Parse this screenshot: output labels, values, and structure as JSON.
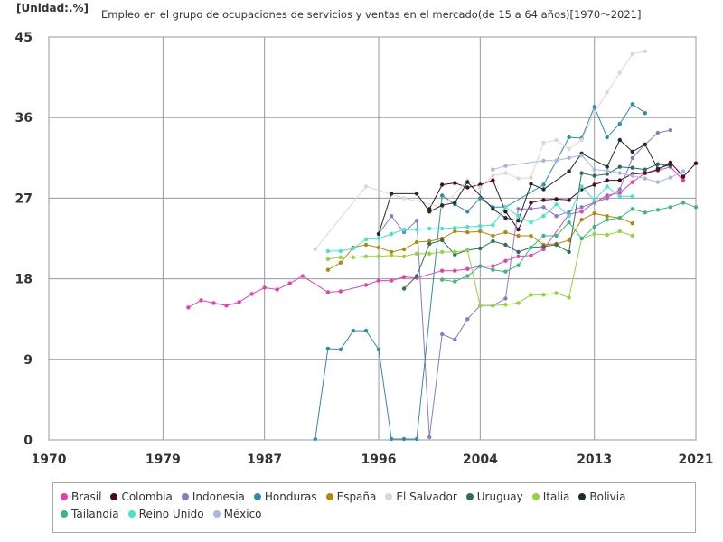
{
  "chart_data": {
    "type": "line",
    "title": "Empleo en el grupo de ocupaciones de servicios y ventas en el mercado(de 15 a 64 años)[1970〜2021]",
    "unit_label": "[Unidad:.%]",
    "xlabel": "",
    "ylabel": "",
    "xlim": [
      1970,
      2021
    ],
    "ylim": [
      0,
      45
    ],
    "x_ticks": [
      "1970",
      "1979",
      "1987",
      "1996",
      "2004",
      "2013",
      "2021"
    ],
    "y_ticks": [
      "0",
      "9",
      "18",
      "27",
      "36",
      "45"
    ],
    "grid": true,
    "legend_position": "bottom",
    "series": [
      {
        "name": "Brasil",
        "color": "#e83fb0",
        "points": [
          [
            1981,
            14.8
          ],
          [
            1982,
            15.6
          ],
          [
            1983,
            15.3
          ],
          [
            1984,
            15
          ],
          [
            1985,
            15.4
          ],
          [
            1986,
            16.3
          ],
          [
            1987,
            17
          ],
          [
            1988,
            16.8
          ],
          [
            1989,
            17.5
          ],
          [
            1990,
            18.3
          ],
          [
            1992,
            16.5
          ],
          [
            1993,
            16.6
          ],
          [
            1995,
            17.3
          ],
          [
            1996,
            17.8
          ],
          [
            1997,
            17.8
          ],
          [
            1998,
            18.2
          ],
          [
            1999,
            18.1
          ],
          [
            2001,
            18.9
          ],
          [
            2002,
            18.9
          ],
          [
            2003,
            19.1
          ],
          [
            2004,
            19.4
          ],
          [
            2005,
            19.4
          ],
          [
            2006,
            20
          ],
          [
            2007,
            20.5
          ],
          [
            2008,
            20.6
          ],
          [
            2009,
            21.3
          ],
          [
            2011,
            25.2
          ],
          [
            2012,
            25.5
          ],
          [
            2013,
            26.5
          ],
          [
            2014,
            27.3
          ],
          [
            2015,
            27.6
          ],
          [
            2016,
            28.8
          ],
          [
            2017,
            29.8
          ],
          [
            2018,
            30.1
          ],
          [
            2019,
            30.5
          ],
          [
            2020,
            29
          ]
        ]
      },
      {
        "name": "Colombia",
        "color": "#4a0a23",
        "points": [
          [
            2000,
            25.8
          ],
          [
            2001,
            28.5
          ],
          [
            2002,
            28.7
          ],
          [
            2003,
            28.2
          ],
          [
            2004,
            28.5
          ],
          [
            2005,
            29
          ],
          [
            2006,
            25.5
          ],
          [
            2007,
            23.5
          ],
          [
            2008,
            26.5
          ],
          [
            2009,
            26.8
          ],
          [
            2010,
            26.9
          ],
          [
            2011,
            26.8
          ],
          [
            2012,
            28
          ],
          [
            2013,
            28.5
          ],
          [
            2014,
            29
          ],
          [
            2015,
            29
          ],
          [
            2016,
            29.7
          ],
          [
            2017,
            29.8
          ],
          [
            2018,
            30.2
          ],
          [
            2019,
            31
          ],
          [
            2020,
            29.4
          ],
          [
            2021,
            30.9
          ]
        ]
      },
      {
        "name": "Indonesia",
        "color": "#8a7acc",
        "points": [
          [
            1996,
            23
          ],
          [
            1997,
            25
          ],
          [
            1998,
            23.2
          ],
          [
            1999,
            24.5
          ],
          [
            2000,
            0.3
          ],
          [
            2001,
            11.8
          ],
          [
            2002,
            11.2
          ],
          [
            2003,
            13.5
          ],
          [
            2004,
            15
          ],
          [
            2005,
            15
          ],
          [
            2006,
            15.8
          ],
          [
            2007,
            25.8
          ],
          [
            2008,
            25.8
          ],
          [
            2009,
            26
          ],
          [
            2010,
            25
          ],
          [
            2011,
            25.5
          ],
          [
            2012,
            26
          ],
          [
            2013,
            26.5
          ],
          [
            2014,
            27
          ],
          [
            2015,
            28
          ],
          [
            2016,
            31.5
          ],
          [
            2017,
            33
          ],
          [
            2018,
            34.3
          ],
          [
            2019,
            34.6
          ]
        ]
      },
      {
        "name": "Honduras",
        "color": "#2c8ea8",
        "points": [
          [
            1991,
            0.1
          ],
          [
            1992,
            10.2
          ],
          [
            1993,
            10.1
          ],
          [
            1994,
            12.2
          ],
          [
            1995,
            12.2
          ],
          [
            1996,
            10.1
          ],
          [
            1997,
            0.1
          ],
          [
            1998,
            0.1
          ],
          [
            1999,
            0.1
          ],
          [
            2001,
            27.3
          ],
          [
            2002,
            26.3
          ],
          [
            2003,
            25.5
          ],
          [
            2004,
            27
          ],
          [
            2005,
            26
          ],
          [
            2006,
            26
          ],
          [
            2009,
            28.5
          ],
          [
            2011,
            33.8
          ],
          [
            2012,
            33.7
          ],
          [
            2013,
            37.2
          ],
          [
            2014,
            33.8
          ],
          [
            2015,
            35.3
          ],
          [
            2016,
            37.5
          ],
          [
            2017,
            36.5
          ]
        ]
      },
      {
        "name": "España",
        "color": "#b8860b",
        "points": [
          [
            1992,
            19
          ],
          [
            1993,
            19.8
          ],
          [
            1994,
            21.5
          ],
          [
            1995,
            21.8
          ],
          [
            1996,
            21.5
          ],
          [
            1997,
            21
          ],
          [
            1998,
            21.3
          ],
          [
            1999,
            22.1
          ],
          [
            2000,
            22.2
          ],
          [
            2001,
            22.5
          ],
          [
            2002,
            23.3
          ],
          [
            2003,
            23.2
          ],
          [
            2004,
            23.3
          ],
          [
            2005,
            22.8
          ],
          [
            2006,
            23.2
          ],
          [
            2007,
            22.8
          ],
          [
            2008,
            22.8
          ],
          [
            2009,
            21.8
          ],
          [
            2010,
            21.9
          ],
          [
            2011,
            22.3
          ],
          [
            2012,
            24.6
          ],
          [
            2013,
            25.3
          ],
          [
            2014,
            25
          ],
          [
            2015,
            24.8
          ],
          [
            2016,
            24.2
          ]
        ]
      },
      {
        "name": "El Salvador",
        "color": "#e0d4d8",
        "points": [
          [
            1991,
            21.3
          ],
          [
            1995,
            28.3
          ],
          [
            1998,
            27
          ],
          [
            2001,
            26
          ],
          [
            2003,
            29
          ],
          [
            2004,
            28.2
          ],
          [
            2005,
            29.5
          ],
          [
            2006,
            29.8
          ],
          [
            2007,
            29.2
          ],
          [
            2008,
            29.3
          ],
          [
            2009,
            33.2
          ],
          [
            2010,
            33.5
          ],
          [
            2011,
            32.5
          ],
          [
            2012,
            33.5
          ],
          [
            2013,
            36.5
          ],
          [
            2014,
            38.8
          ],
          [
            2015,
            41
          ],
          [
            2016,
            43.1
          ],
          [
            2017,
            43.4
          ]
        ]
      },
      {
        "name": "Uruguay",
        "color": "#2d6e5a",
        "points": [
          [
            1998,
            16.9
          ],
          [
            1999,
            18.3
          ],
          [
            2000,
            21.9
          ],
          [
            2001,
            22.3
          ],
          [
            2002,
            20.7
          ],
          [
            2003,
            21.2
          ],
          [
            2004,
            21.4
          ],
          [
            2005,
            22.2
          ],
          [
            2006,
            21.8
          ],
          [
            2007,
            21
          ],
          [
            2008,
            21.5
          ],
          [
            2009,
            21.6
          ],
          [
            2010,
            21.8
          ],
          [
            2011,
            21
          ],
          [
            2012,
            29.8
          ],
          [
            2013,
            29.5
          ],
          [
            2014,
            29.7
          ],
          [
            2015,
            30.5
          ],
          [
            2016,
            30.4
          ],
          [
            2017,
            30.2
          ],
          [
            2018,
            30.8
          ],
          [
            2019,
            30.6
          ]
        ]
      },
      {
        "name": "Italia",
        "color": "#8fd63a",
        "points": [
          [
            1992,
            20.2
          ],
          [
            1993,
            20.4
          ],
          [
            1994,
            20.4
          ],
          [
            1995,
            20.5
          ],
          [
            1996,
            20.5
          ],
          [
            1997,
            20.6
          ],
          [
            1998,
            20.5
          ],
          [
            1999,
            20.8
          ],
          [
            2000,
            20.8
          ],
          [
            2001,
            21
          ],
          [
            2002,
            21
          ],
          [
            2003,
            21.2
          ],
          [
            2004,
            15
          ],
          [
            2005,
            15
          ],
          [
            2006,
            15.1
          ],
          [
            2007,
            15.3
          ],
          [
            2008,
            16.2
          ],
          [
            2009,
            16.2
          ],
          [
            2010,
            16.4
          ],
          [
            2011,
            15.9
          ],
          [
            2012,
            22.5
          ],
          [
            2013,
            23
          ],
          [
            2014,
            22.9
          ],
          [
            2015,
            23.3
          ],
          [
            2016,
            22.8
          ]
        ]
      },
      {
        "name": "Bolivia",
        "color": "#1e2e2a",
        "points": [
          [
            1996,
            23
          ],
          [
            1997,
            27.5
          ],
          [
            1999,
            27.5
          ],
          [
            2000,
            25.5
          ],
          [
            2001,
            26.2
          ],
          [
            2002,
            26.5
          ],
          [
            2003,
            28.8
          ],
          [
            2005,
            25.8
          ],
          [
            2006,
            24.8
          ],
          [
            2007,
            24.5
          ],
          [
            2008,
            28.6
          ],
          [
            2009,
            28
          ],
          [
            2011,
            30
          ],
          [
            2012,
            32
          ],
          [
            2014,
            30.5
          ],
          [
            2015,
            33.5
          ],
          [
            2016,
            32.2
          ],
          [
            2017,
            33
          ],
          [
            2018,
            30.3
          ],
          [
            2019,
            30.8
          ]
        ]
      },
      {
        "name": "Tailandia",
        "color": "#3cb880",
        "points": [
          [
            2001,
            17.9
          ],
          [
            2002,
            17.7
          ],
          [
            2003,
            18.3
          ],
          [
            2004,
            19.4
          ],
          [
            2005,
            19
          ],
          [
            2006,
            18.8
          ],
          [
            2007,
            19.5
          ],
          [
            2008,
            21.5
          ],
          [
            2009,
            22.8
          ],
          [
            2010,
            22.8
          ],
          [
            2011,
            24.3
          ],
          [
            2012,
            22.5
          ],
          [
            2013,
            23.8
          ],
          [
            2014,
            24.6
          ],
          [
            2015,
            24.8
          ],
          [
            2016,
            25.8
          ],
          [
            2017,
            25.4
          ],
          [
            2018,
            25.7
          ],
          [
            2019,
            26
          ],
          [
            2020,
            26.5
          ],
          [
            2021,
            26
          ]
        ]
      },
      {
        "name": "Reino Unido",
        "color": "#40e8c8",
        "points": [
          [
            1992,
            21.1
          ],
          [
            1993,
            21.1
          ],
          [
            1994,
            21.4
          ],
          [
            1995,
            22.4
          ],
          [
            1996,
            22.5
          ],
          [
            1997,
            23
          ],
          [
            1998,
            23.5
          ],
          [
            1999,
            23.5
          ],
          [
            2000,
            23.6
          ],
          [
            2001,
            23.6
          ],
          [
            2002,
            23.7
          ],
          [
            2003,
            23.8
          ],
          [
            2004,
            23.9
          ],
          [
            2005,
            24
          ],
          [
            2006,
            26
          ],
          [
            2007,
            25
          ],
          [
            2008,
            24.3
          ],
          [
            2009,
            25
          ],
          [
            2010,
            26.3
          ],
          [
            2011,
            25
          ],
          [
            2012,
            28.3
          ],
          [
            2013,
            26.8
          ],
          [
            2014,
            28.3
          ],
          [
            2015,
            27.2
          ],
          [
            2016,
            27.2
          ]
        ]
      },
      {
        "name": "México",
        "color": "#a6b8e0",
        "points": [
          [
            2005,
            30.2
          ],
          [
            2006,
            30.6
          ],
          [
            2009,
            31.2
          ],
          [
            2010,
            31.2
          ],
          [
            2011,
            31.5
          ],
          [
            2012,
            31.8
          ],
          [
            2013,
            30.2
          ],
          [
            2014,
            30.1
          ],
          [
            2015,
            29.8
          ],
          [
            2016,
            29.5
          ],
          [
            2017,
            29.2
          ],
          [
            2018,
            28.8
          ],
          [
            2019,
            29.3
          ],
          [
            2020,
            30
          ]
        ]
      }
    ]
  }
}
